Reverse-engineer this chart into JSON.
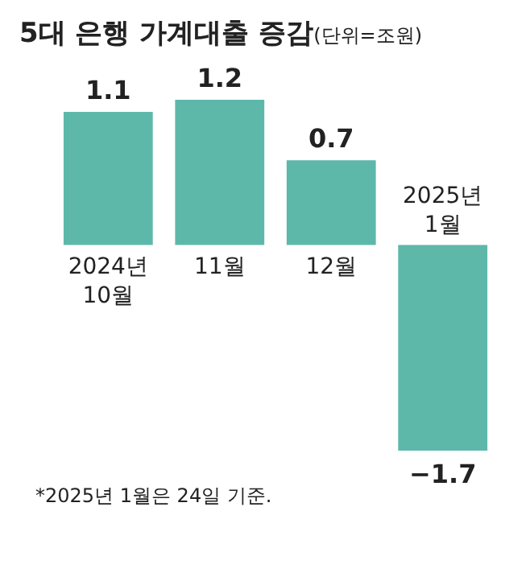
{
  "chart_data": {
    "type": "bar",
    "title": "5대 은행 가계대출 증감",
    "subtitle": "(단위=조원)",
    "categories": [
      "2024년\n10월",
      "11월",
      "12월",
      "2025년\n1월"
    ],
    "values": [
      1.1,
      1.2,
      0.7,
      -1.7
    ],
    "color": "#5db8aa",
    "data_labels": true,
    "annotations": [
      "*2025년 1월은 24일 기준."
    ]
  }
}
